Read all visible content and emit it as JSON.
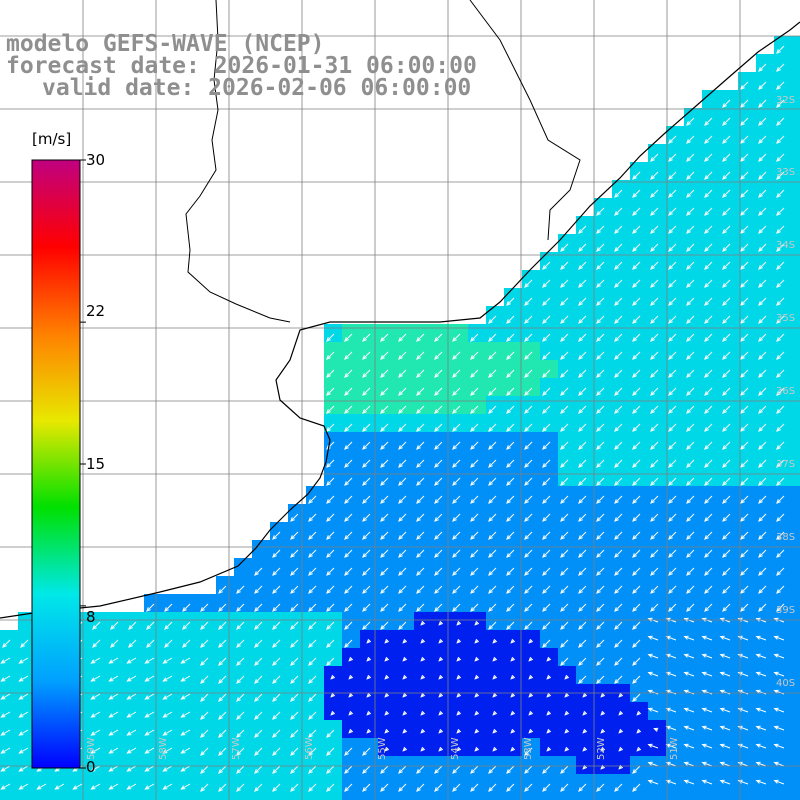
{
  "titles": {
    "line1": "modelo GEFS-WAVE (NCEP)",
    "line2": "forecast date: 2026-01-31 06:00:00",
    "line3": "valid date: 2026-02-06 06:00:00"
  },
  "colorbar": {
    "unit": "[m/s]",
    "ticks": [
      "30",
      "22",
      "15",
      "8",
      "0"
    ],
    "tick_values": [
      30,
      22,
      15,
      8,
      0
    ],
    "min": 0,
    "max": 30,
    "colors": [
      "#0000ff",
      "#00a0ff",
      "#00e8e8",
      "#00e000",
      "#e8e800",
      "#ff8000",
      "#ff0000",
      "#c00080"
    ]
  },
  "map": {
    "lat_labels": [
      "32S",
      "33S",
      "34S",
      "35S",
      "36S",
      "37S",
      "38S",
      "39S",
      "40S"
    ],
    "lon_labels": [
      "59W",
      "58W",
      "57W",
      "56W",
      "55W",
      "54W",
      "53W",
      "52W",
      "51W"
    ],
    "land_color": "#ffffff",
    "grid_color": "#7f7f7f",
    "coast_color": "#000000",
    "arrow_color": "#ffffff",
    "field_description_colors": {
      "weak": "#0020f0",
      "moderate": "#0090f8",
      "fresh": "#00d8e8",
      "strong": "#20e8b0"
    }
  }
}
